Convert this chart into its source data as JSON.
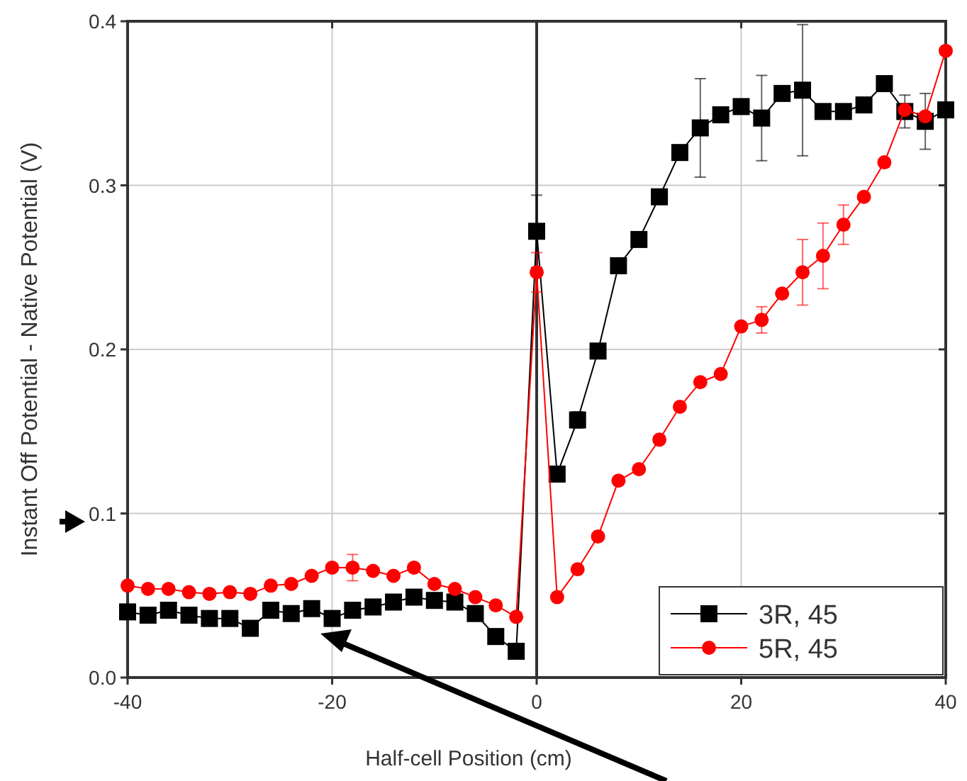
{
  "chart_data": {
    "type": "line",
    "xlabel": "Half-cell Position (cm)",
    "ylabel": "Instant Off Potential - Native Potential (V)",
    "x": [
      -40,
      -38,
      -36,
      -34,
      -32,
      -30,
      -28,
      -26,
      -24,
      -22,
      -20,
      -18,
      -16,
      -14,
      -12,
      -10,
      -8,
      -6,
      -4,
      -2,
      0,
      2,
      4,
      6,
      8,
      10,
      12,
      14,
      16,
      18,
      20,
      22,
      24,
      26,
      28,
      30,
      32,
      34,
      36,
      38,
      40
    ],
    "series": [
      {
        "name": "3R, 45",
        "color": "#000000",
        "marker": "square",
        "values": [
          0.04,
          0.038,
          0.041,
          0.038,
          0.036,
          0.036,
          0.03,
          0.041,
          0.039,
          0.042,
          0.036,
          0.041,
          0.043,
          0.046,
          0.049,
          0.047,
          0.046,
          0.039,
          0.025,
          0.016,
          0.272,
          0.124,
          0.157,
          0.199,
          0.251,
          0.267,
          0.293,
          0.32,
          0.335,
          0.343,
          0.348,
          0.341,
          0.356,
          0.358,
          0.345,
          0.345,
          0.349,
          0.362,
          0.345,
          0.339,
          0.346
        ],
        "errors": [
          null,
          null,
          null,
          null,
          null,
          null,
          null,
          null,
          null,
          null,
          null,
          null,
          null,
          null,
          null,
          null,
          null,
          null,
          null,
          null,
          0.022,
          null,
          0.005,
          null,
          null,
          null,
          null,
          null,
          0.03,
          null,
          null,
          0.026,
          null,
          0.04,
          null,
          null,
          null,
          null,
          0.01,
          0.017,
          null
        ]
      },
      {
        "name": "5R, 45",
        "color": "#ff0000",
        "marker": "circle",
        "values": [
          0.056,
          0.054,
          0.054,
          0.052,
          0.051,
          0.052,
          0.051,
          0.056,
          0.057,
          0.062,
          0.067,
          0.067,
          0.065,
          0.062,
          0.067,
          0.057,
          0.054,
          0.049,
          0.044,
          0.037,
          0.247,
          0.049,
          0.066,
          0.086,
          0.12,
          0.127,
          0.145,
          0.165,
          0.18,
          0.185,
          0.214,
          0.218,
          0.234,
          0.247,
          0.257,
          0.276,
          0.293,
          0.314,
          0.346,
          0.342,
          0.382
        ],
        "errors": [
          null,
          null,
          null,
          null,
          null,
          null,
          null,
          null,
          null,
          null,
          null,
          0.008,
          null,
          null,
          null,
          null,
          null,
          null,
          null,
          null,
          0.012,
          null,
          null,
          null,
          null,
          null,
          null,
          null,
          null,
          null,
          null,
          0.008,
          null,
          0.02,
          0.02,
          0.012,
          null,
          null,
          null,
          null,
          null
        ]
      }
    ],
    "xlim": [
      -40,
      40
    ],
    "xticks": [
      -40,
      -20,
      0,
      20,
      40
    ],
    "ylim": [
      0,
      0.4
    ],
    "yticks": [
      {
        "value": 0,
        "label": "0.0"
      },
      0.1,
      0.2,
      0.3,
      0.4
    ],
    "ref_lines": [
      {
        "axis": "x",
        "value": 0,
        "color": "#333333"
      }
    ],
    "grid": true,
    "legend": "bottom right"
  }
}
